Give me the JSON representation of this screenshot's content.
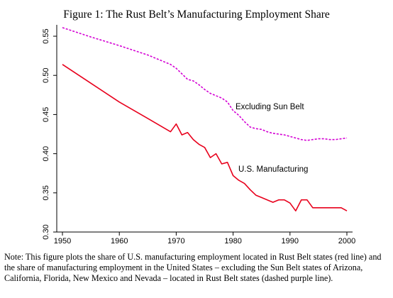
{
  "title": "Figure 1: The Rust Belt’s Manufacturing Employment Share",
  "note": "Note: This figure plots the share of U.S. manufacturing employment located in Rust Belt states (red line) and the share of manufacturing employment in the United States – excluding the Sun Belt states of Arizona, California, Florida, New Mexico and Nevada – located in Rust Belt states (dashed purple line).",
  "chart_data": {
    "type": "line",
    "title": "Figure 1: The Rust Belt’s Manufacturing Employment Share",
    "xlabel": "",
    "ylabel": "",
    "xlim": [
      1949,
      2001
    ],
    "ylim": [
      0.3,
      0.56
    ],
    "xticks": [
      1950,
      1960,
      1970,
      1980,
      1990,
      2000
    ],
    "yticks": [
      0.3,
      0.35,
      0.4,
      0.45,
      0.5,
      0.55
    ],
    "ytick_labels": [
      "0.30",
      "0.35",
      "0.40",
      "0.45",
      "0.50",
      "0.55"
    ],
    "grid": false,
    "legend": "none",
    "series": [
      {
        "name": "Excluding Sun Belt",
        "color": "#d400d4",
        "dash": "dashed",
        "points": [
          [
            1950,
            0.561
          ],
          [
            1955,
            0.549
          ],
          [
            1960,
            0.538
          ],
          [
            1965,
            0.526
          ],
          [
            1969,
            0.514
          ],
          [
            1970,
            0.509
          ],
          [
            1971,
            0.502
          ],
          [
            1972,
            0.495
          ],
          [
            1973,
            0.493
          ],
          [
            1974,
            0.488
          ],
          [
            1975,
            0.482
          ],
          [
            1976,
            0.477
          ],
          [
            1977,
            0.474
          ],
          [
            1978,
            0.471
          ],
          [
            1979,
            0.466
          ],
          [
            1980,
            0.455
          ],
          [
            1981,
            0.449
          ],
          [
            1982,
            0.441
          ],
          [
            1983,
            0.434
          ],
          [
            1984,
            0.432
          ],
          [
            1985,
            0.431
          ],
          [
            1986,
            0.428
          ],
          [
            1987,
            0.426
          ],
          [
            1988,
            0.425
          ],
          [
            1989,
            0.424
          ],
          [
            1990,
            0.422
          ],
          [
            1991,
            0.42
          ],
          [
            1992,
            0.418
          ],
          [
            1993,
            0.417
          ],
          [
            1994,
            0.418
          ],
          [
            1995,
            0.419
          ],
          [
            1996,
            0.419
          ],
          [
            1997,
            0.418
          ],
          [
            1998,
            0.418
          ],
          [
            1999,
            0.419
          ],
          [
            2000,
            0.42
          ]
        ],
        "label": "Excluding Sun Belt"
      },
      {
        "name": "U.S. Manufacturing",
        "color": "#e8001c",
        "dash": "solid",
        "points": [
          [
            1950,
            0.514
          ],
          [
            1955,
            0.49
          ],
          [
            1960,
            0.466
          ],
          [
            1965,
            0.445
          ],
          [
            1969,
            0.428
          ],
          [
            1970,
            0.438
          ],
          [
            1971,
            0.424
          ],
          [
            1972,
            0.427
          ],
          [
            1973,
            0.418
          ],
          [
            1974,
            0.412
          ],
          [
            1975,
            0.408
          ],
          [
            1976,
            0.395
          ],
          [
            1977,
            0.4
          ],
          [
            1978,
            0.387
          ],
          [
            1979,
            0.389
          ],
          [
            1980,
            0.372
          ],
          [
            1981,
            0.366
          ],
          [
            1982,
            0.362
          ],
          [
            1983,
            0.354
          ],
          [
            1984,
            0.347
          ],
          [
            1985,
            0.344
          ],
          [
            1986,
            0.341
          ],
          [
            1987,
            0.338
          ],
          [
            1988,
            0.341
          ],
          [
            1989,
            0.341
          ],
          [
            1990,
            0.337
          ],
          [
            1991,
            0.327
          ],
          [
            1992,
            0.341
          ],
          [
            1993,
            0.341
          ],
          [
            1994,
            0.331
          ],
          [
            1995,
            0.331
          ],
          [
            1996,
            0.331
          ],
          [
            1997,
            0.331
          ],
          [
            1998,
            0.331
          ],
          [
            1999,
            0.331
          ],
          [
            2000,
            0.327
          ]
        ],
        "label": "U.S. Manufacturing"
      }
    ]
  }
}
